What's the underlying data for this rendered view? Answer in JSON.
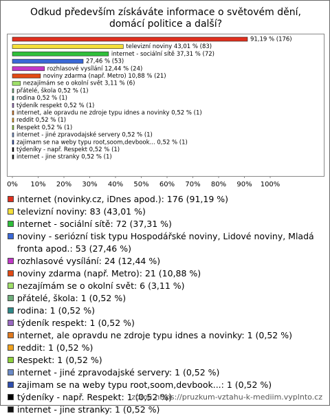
{
  "chart_data": {
    "type": "bar",
    "orientation": "horizontal",
    "title": "Odkud především získáváte informace o světovém dění, domácí politice a další?",
    "categories": [
      "internet (novinky.cz, iDnes apod.): 176 (91,19 %)",
      "televizní noviny: 83 (43,01 %)",
      "internet - sociální sítě: 72 (37,31 %)",
      "noviny - seriózní tisk typu Hospodářské noviny, Lidové noviny, Mladá fronta apod.: 53 (27,46 %)",
      "rozhlasové vysílání: 24 (12,44 %)",
      "noviny zdarma (např. Metro): 21 (10,88 %)",
      "nezajímám se o okolní svět: 6 (3,11 %)",
      "přátelé, škola: 1 (0,52 %)",
      "rodina: 1 (0,52 %)",
      "týdeník respekt: 1 (0,52 %)",
      "internet, ale opravdu ne zdroje typu idnes a novinky: 1 (0,52 %)",
      "reddit: 1 (0,52 %)",
      "Respekt: 1 (0,52 %)",
      "internet - jiné zpravodajské servery: 1 (0,52 %)",
      "zajimam se na weby typu root,soom,devbook...: 1 (0,52 %)",
      "týdeníky - např. Respekt: 1 (0,52 %)",
      "internet - jine stranky: 1 (0,52 %)"
    ],
    "values": [
      91.19,
      43.01,
      37.31,
      27.46,
      12.44,
      10.88,
      3.11,
      0.52,
      0.52,
      0.52,
      0.52,
      0.52,
      0.52,
      0.52,
      0.52,
      0.52,
      0.52
    ],
    "value_labels": [
      "91,19 % (176)",
      "televizní noviny 43,01 % (83)",
      "internet - sociální sítě 37,31 % (72)",
      "27,46 % (53)",
      "rozhlasové vysílání 12,44 % (24)",
      "noviny zdarma (např. Metro) 10,88 % (21)",
      "nezajímám se o okolní svět 3,11 % (6)",
      "přátelé, škola 0,52 % (1)",
      "rodina 0,52 % (1)",
      "týdeník respekt 0,52 % (1)",
      "internet, ale opravdu ne zdroje typu idnes a novinky 0,52 % (1)",
      "reddit 0,52 % (1)",
      "Respekt 0,52 % (1)",
      "internet - jiné zpravodajské servery 0,52 % (1)",
      "zajimam se na weby typu root,soom,devbook... 0,52 % (1)",
      "týdeníky - např. Respekt 0,52 % (1)",
      "internet - jine stranky 0,52 % (1)"
    ],
    "colors": [
      "#e0301e",
      "#f5e03a",
      "#2fbf3a",
      "#3a68d6",
      "#c238c8",
      "#e24a14",
      "#9fe06a",
      "#6fae7c",
      "#2f8a8a",
      "#9a6ac2",
      "#e07a20",
      "#f0a21e",
      "#8ed23a",
      "#6c8cc8",
      "#2f4fae",
      "#000000",
      "#111111"
    ],
    "xlim": [
      0,
      100
    ],
    "xticks": [
      {
        "value": 0,
        "label": "0%"
      },
      {
        "value": 10,
        "label": "10%"
      },
      {
        "value": 20,
        "label": "20%"
      },
      {
        "value": 30,
        "label": "30%"
      },
      {
        "value": 40,
        "label": "40%"
      },
      {
        "value": 50,
        "label": "50%"
      },
      {
        "value": 60,
        "label": "60%"
      },
      {
        "value": 70,
        "label": "70%"
      },
      {
        "value": 80,
        "label": "80%"
      },
      {
        "value": 90,
        "label": "90%"
      },
      {
        "value": 100,
        "label": "100%"
      }
    ],
    "source": "zdroj: https://pruzkum-vztahu-k-mediim.vyplnto.cz"
  }
}
